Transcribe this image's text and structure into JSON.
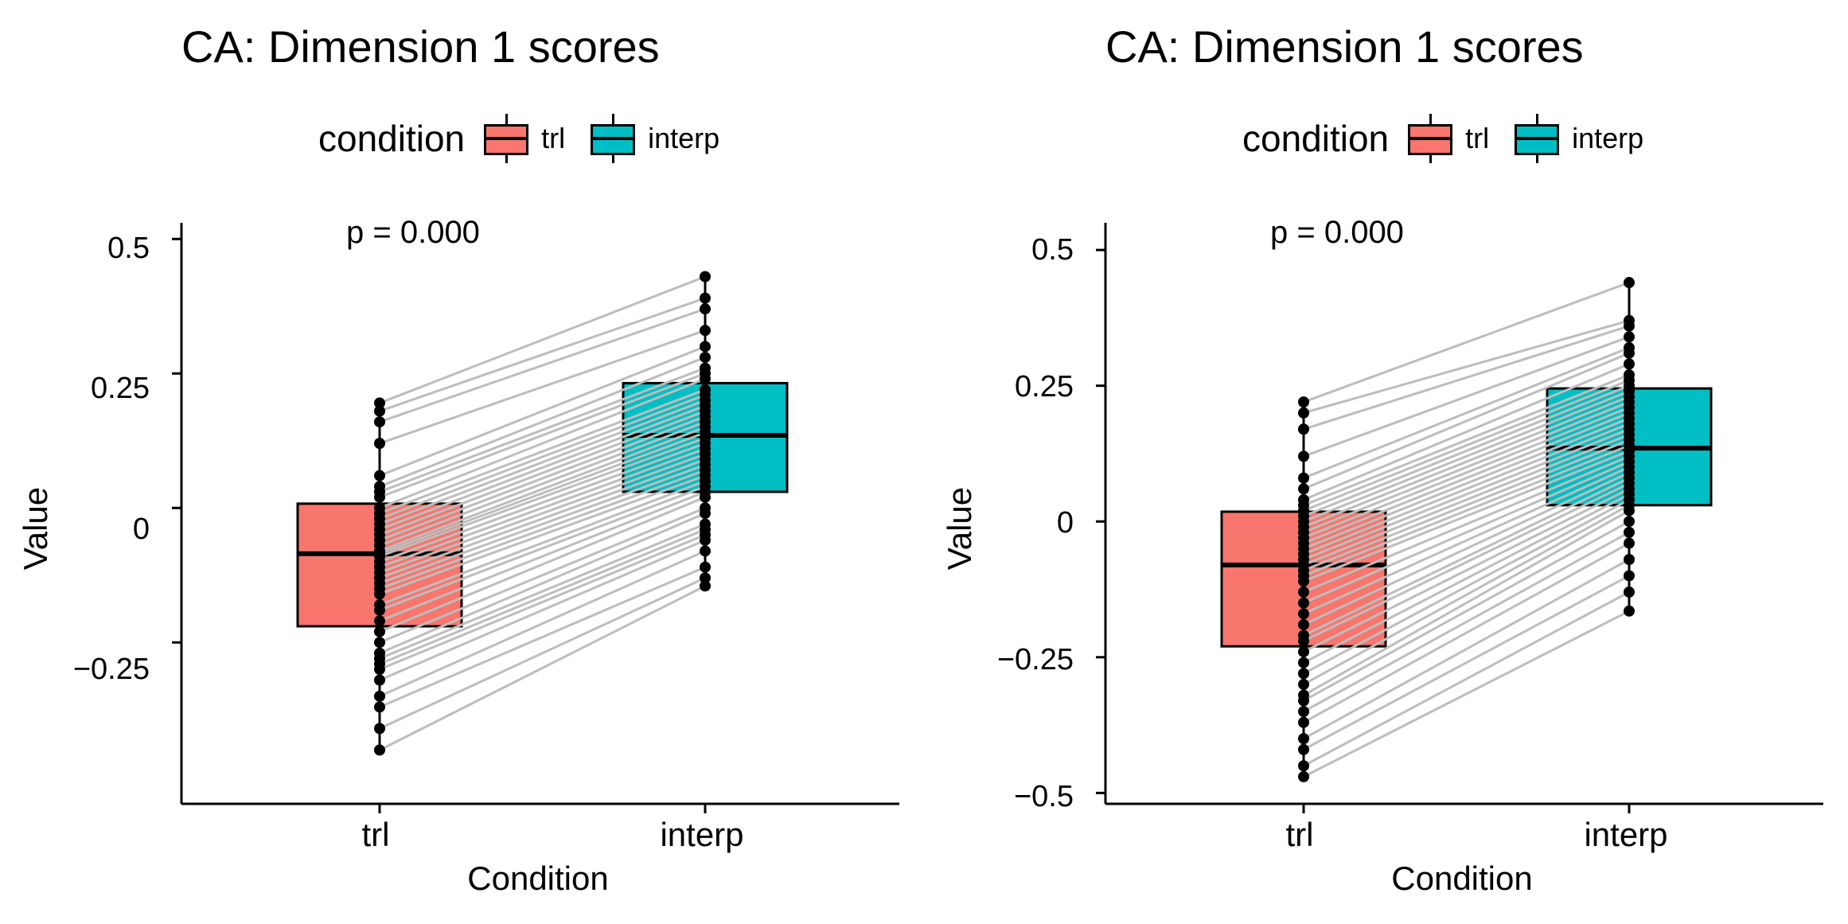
{
  "chart_data": [
    {
      "type": "boxplot",
      "title": "CA: Dimension 1 scores",
      "legend": {
        "title": "condition",
        "entries": [
          "trl",
          "interp"
        ],
        "colors": [
          "#F8766D",
          "#00BFC4"
        ],
        "position": "top"
      },
      "annotation": "p = 0.000",
      "xlabel": "Condition",
      "ylabel": "Value",
      "categories": [
        "trl",
        "interp"
      ],
      "ylim": [
        -0.55,
        0.53
      ],
      "yticks": [
        0.5,
        0.25,
        0,
        -0.25
      ],
      "ytick_labels": [
        "0.5",
        "0.25",
        "0",
        "−0.25"
      ],
      "boxes": [
        {
          "q1": -0.22,
          "median": -0.085,
          "q3": 0.008,
          "whisker_low": -0.45,
          "whisker_high": 0.195
        },
        {
          "q1": 0.03,
          "median": 0.135,
          "q3": 0.232,
          "whisker_low": -0.145,
          "whisker_high": 0.43
        }
      ],
      "pairs": [
        [
          0.195,
          0.43
        ],
        [
          0.18,
          0.39
        ],
        [
          0.16,
          0.37
        ],
        [
          0.12,
          0.33
        ],
        [
          0.06,
          0.3
        ],
        [
          0.04,
          0.28
        ],
        [
          0.03,
          0.26
        ],
        [
          0.02,
          0.25
        ],
        [
          0.0,
          0.24
        ],
        [
          -0.01,
          0.22
        ],
        [
          -0.02,
          0.21
        ],
        [
          -0.03,
          0.2
        ],
        [
          -0.04,
          0.19
        ],
        [
          -0.05,
          0.18
        ],
        [
          -0.06,
          0.17
        ],
        [
          -0.07,
          0.16
        ],
        [
          -0.08,
          0.15
        ],
        [
          -0.085,
          0.14
        ],
        [
          -0.09,
          0.13
        ],
        [
          -0.1,
          0.12
        ],
        [
          -0.11,
          0.11
        ],
        [
          -0.12,
          0.1
        ],
        [
          -0.13,
          0.09
        ],
        [
          -0.14,
          0.08
        ],
        [
          -0.15,
          0.07
        ],
        [
          -0.16,
          0.06
        ],
        [
          -0.18,
          0.05
        ],
        [
          -0.19,
          0.04
        ],
        [
          -0.21,
          0.03
        ],
        [
          -0.23,
          0.02
        ],
        [
          -0.25,
          0.0
        ],
        [
          -0.27,
          -0.01
        ],
        [
          -0.28,
          -0.03
        ],
        [
          -0.29,
          -0.04
        ],
        [
          -0.3,
          -0.05
        ],
        [
          -0.32,
          -0.06
        ],
        [
          -0.35,
          -0.08
        ],
        [
          -0.37,
          -0.11
        ],
        [
          -0.41,
          -0.13
        ],
        [
          -0.45,
          -0.145
        ]
      ]
    },
    {
      "type": "boxplot",
      "title": "CA: Dimension 1 scores",
      "legend": {
        "title": "condition",
        "entries": [
          "trl",
          "interp"
        ],
        "colors": [
          "#F8766D",
          "#00BFC4"
        ],
        "position": "top"
      },
      "annotation": "p = 0.000",
      "xlabel": "Condition",
      "ylabel": "Value",
      "categories": [
        "trl",
        "interp"
      ],
      "ylim": [
        -0.52,
        0.55
      ],
      "yticks": [
        0.5,
        0.25,
        0,
        -0.25,
        -0.5
      ],
      "ytick_labels": [
        "0.5",
        "0.25",
        "0",
        "−0.25",
        "−0.5"
      ],
      "boxes": [
        {
          "q1": -0.23,
          "median": -0.08,
          "q3": 0.018,
          "whisker_low": -0.47,
          "whisker_high": 0.22
        },
        {
          "q1": 0.03,
          "median": 0.135,
          "q3": 0.245,
          "whisker_low": -0.165,
          "whisker_high": 0.44
        }
      ],
      "pairs": [
        [
          0.22,
          0.44
        ],
        [
          0.2,
          0.37
        ],
        [
          0.17,
          0.36
        ],
        [
          0.12,
          0.34
        ],
        [
          0.08,
          0.32
        ],
        [
          0.06,
          0.31
        ],
        [
          0.04,
          0.29
        ],
        [
          0.03,
          0.27
        ],
        [
          0.02,
          0.26
        ],
        [
          0.01,
          0.25
        ],
        [
          0.0,
          0.24
        ],
        [
          -0.01,
          0.23
        ],
        [
          -0.02,
          0.22
        ],
        [
          -0.03,
          0.21
        ],
        [
          -0.04,
          0.2
        ],
        [
          -0.05,
          0.19
        ],
        [
          -0.06,
          0.18
        ],
        [
          -0.07,
          0.17
        ],
        [
          -0.08,
          0.16
        ],
        [
          -0.09,
          0.15
        ],
        [
          -0.1,
          0.14
        ],
        [
          -0.11,
          0.13
        ],
        [
          -0.13,
          0.12
        ],
        [
          -0.15,
          0.11
        ],
        [
          -0.17,
          0.1
        ],
        [
          -0.19,
          0.09
        ],
        [
          -0.21,
          0.08
        ],
        [
          -0.22,
          0.07
        ],
        [
          -0.24,
          0.06
        ],
        [
          -0.26,
          0.05
        ],
        [
          -0.28,
          0.04
        ],
        [
          -0.3,
          0.03
        ],
        [
          -0.32,
          0.02
        ],
        [
          -0.33,
          0.0
        ],
        [
          -0.35,
          -0.02
        ],
        [
          -0.37,
          -0.04
        ],
        [
          -0.4,
          -0.07
        ],
        [
          -0.42,
          -0.1
        ],
        [
          -0.45,
          -0.13
        ],
        [
          -0.47,
          -0.165
        ]
      ]
    }
  ]
}
